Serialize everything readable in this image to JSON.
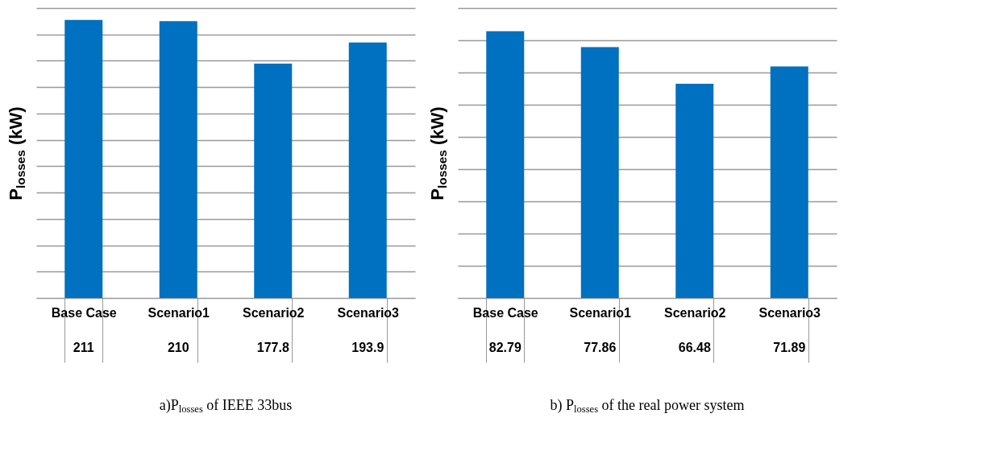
{
  "chart_data": [
    {
      "type": "bar",
      "title": "a)P$_{losses}$ of IEEE 33bus",
      "ylabel": "P$_{losses}$ (kW)",
      "categories": [
        "Base Case",
        "Scenario1",
        "Scenario2",
        "Scenario3"
      ],
      "values": [
        211,
        210,
        177.8,
        193.9
      ],
      "color": "#0070c0",
      "grid": "y",
      "data_labels": true,
      "tick_labels": "x"
    },
    {
      "type": "bar",
      "title": "b) P$_{losses}$ of the real power system",
      "ylabel": "P$_{losses}$ (kW)",
      "categories": [
        "Base Case",
        "Scenario1",
        "Scenario2",
        "Scenario3"
      ],
      "values": [
        82.79,
        77.86,
        66.48,
        71.89
      ],
      "color": "#0070c0",
      "grid": "y",
      "data_labels": true,
      "tick_labels": "x"
    }
  ]
}
